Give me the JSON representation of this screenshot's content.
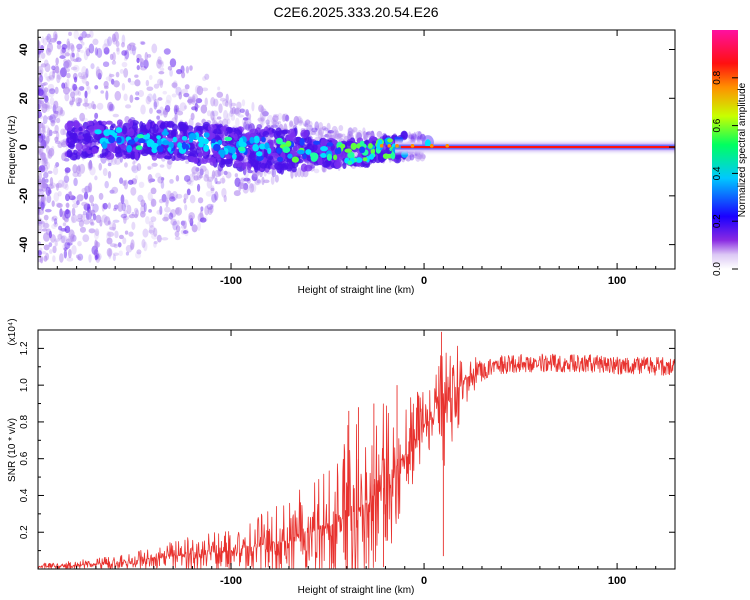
{
  "figure_title": "C2E6.2025.333.20.54.E26",
  "colorbar": {
    "label": "Normalized spectral amplitude",
    "ticks": [
      "0.0",
      "0.2",
      "0.4",
      "0.6",
      "0.8"
    ],
    "tick_values": [
      0.0,
      0.2,
      0.4,
      0.6,
      0.8
    ],
    "range": [
      0,
      1
    ],
    "colors": [
      "#ffffff",
      "#8a2be2",
      "#1a00ff",
      "#00c8ff",
      "#00ff60",
      "#c8ff00",
      "#ff9000",
      "#ff1010",
      "#ff10a0"
    ]
  },
  "chart_data": [
    {
      "id": "spectrogram",
      "type": "heatmap",
      "title": "",
      "xlabel": "Height of straight line (km)",
      "ylabel": "Frequency (Hz)",
      "xlim": [
        -200,
        130
      ],
      "ylim": [
        -50,
        48
      ],
      "xticks": [
        -100,
        0,
        100
      ],
      "xtick_labels": [
        "-100",
        "0",
        "100"
      ],
      "yticks": [
        -40,
        -20,
        0,
        20,
        40
      ],
      "ytick_labels": [
        "-40",
        "-20",
        "0",
        "20",
        "40"
      ],
      "carrier_line": {
        "y": 0,
        "from_x": -12,
        "to_x": 130,
        "color": "#ff1010"
      },
      "description_series": [
        {
          "name": "scatter_halo_span_hz",
          "x": [
            -200,
            -150,
            -120,
            -100,
            -70,
            -40,
            -20,
            0,
            20,
            60,
            130
          ],
          "values": [
            48,
            45,
            35,
            20,
            12,
            8,
            5,
            5,
            3,
            3,
            3
          ]
        },
        {
          "name": "core_band_center_hz",
          "x": [
            -190,
            -150,
            -120,
            -100,
            -80,
            -60,
            -40,
            -20,
            0,
            20,
            130
          ],
          "values": [
            3,
            3,
            2,
            0,
            -1,
            -2,
            -3,
            -1,
            1,
            0,
            0
          ]
        }
      ]
    },
    {
      "id": "snr",
      "type": "line",
      "title": "",
      "xlabel": "Height of straight line (km)",
      "ylabel": "SNR (10 * v/v)",
      "y_scale_label": "(x10⁴)",
      "y_multiplier": 10000,
      "xlim": [
        -200,
        130
      ],
      "ylim": [
        0.0,
        1.3
      ],
      "xticks": [
        -100,
        0,
        100
      ],
      "xtick_labels": [
        "-100",
        "0",
        "100"
      ],
      "yticks": [
        0.2,
        0.4,
        0.6,
        0.8,
        1.0,
        1.2
      ],
      "ytick_labels": [
        "0.2",
        "0.4",
        "0.6",
        "0.8",
        "1.0",
        "1.2"
      ],
      "series": [
        {
          "name": "SNR",
          "color": "#e8322e",
          "x": [
            -200,
            -180,
            -160,
            -140,
            -120,
            -100,
            -90,
            -80,
            -70,
            -60,
            -50,
            -40,
            -30,
            -20,
            -15,
            -10,
            -5,
            0,
            5,
            10,
            15,
            20,
            25,
            30,
            35,
            40,
            50,
            60,
            80,
            100,
            130
          ],
          "values": [
            0.01,
            0.02,
            0.03,
            0.06,
            0.08,
            0.1,
            0.12,
            0.14,
            0.16,
            0.2,
            0.23,
            0.28,
            0.36,
            0.45,
            0.55,
            0.62,
            0.7,
            0.78,
            0.83,
            0.88,
            0.95,
            1.02,
            1.06,
            1.08,
            1.1,
            1.11,
            1.12,
            1.12,
            1.12,
            1.11,
            1.1
          ],
          "noise_envelope": [
            0.02,
            0.03,
            0.04,
            0.06,
            0.1,
            0.14,
            0.15,
            0.18,
            0.22,
            0.28,
            0.38,
            0.5,
            0.45,
            0.5,
            0.45,
            0.35,
            0.3,
            0.22,
            0.18,
            0.4,
            0.3,
            0.15,
            0.1,
            0.06,
            0.05,
            0.05,
            0.05,
            0.05,
            0.05,
            0.05,
            0.05
          ],
          "spikes": [
            {
              "x": -39,
              "y": 0.86
            },
            {
              "x": -34,
              "y": 0.88
            },
            {
              "x": -26,
              "y": 0.9
            },
            {
              "x": -14,
              "y": 1.0
            },
            {
              "x": 9,
              "y": 1.29
            },
            {
              "x": 10,
              "y": 0.07
            },
            {
              "x": -21,
              "y": 0.01
            },
            {
              "x": -30,
              "y": 0.03
            }
          ]
        }
      ]
    }
  ]
}
